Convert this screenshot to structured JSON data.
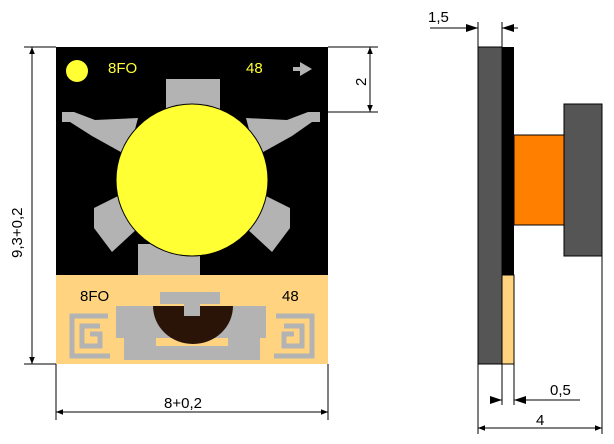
{
  "front_view": {
    "chip_label_left": "8FO",
    "chip_label_right": "48",
    "pad_label_left": "8FO",
    "pad_label_right": "48"
  },
  "dimensions": {
    "height": "9,3+0,2",
    "width": "8+0,2",
    "top_offset": "2",
    "side_thickness": "1,5",
    "side_pad": "0,5",
    "side_depth": "4"
  },
  "colors": {
    "substrate": "#000000",
    "led_emitter": "#ffff33",
    "metal": "#b3b3b3",
    "pad_area": "#ffd37f",
    "dome": "#2a1408",
    "side_body": "#555555",
    "side_lens": "#ff8000",
    "background": "#ffffff"
  }
}
